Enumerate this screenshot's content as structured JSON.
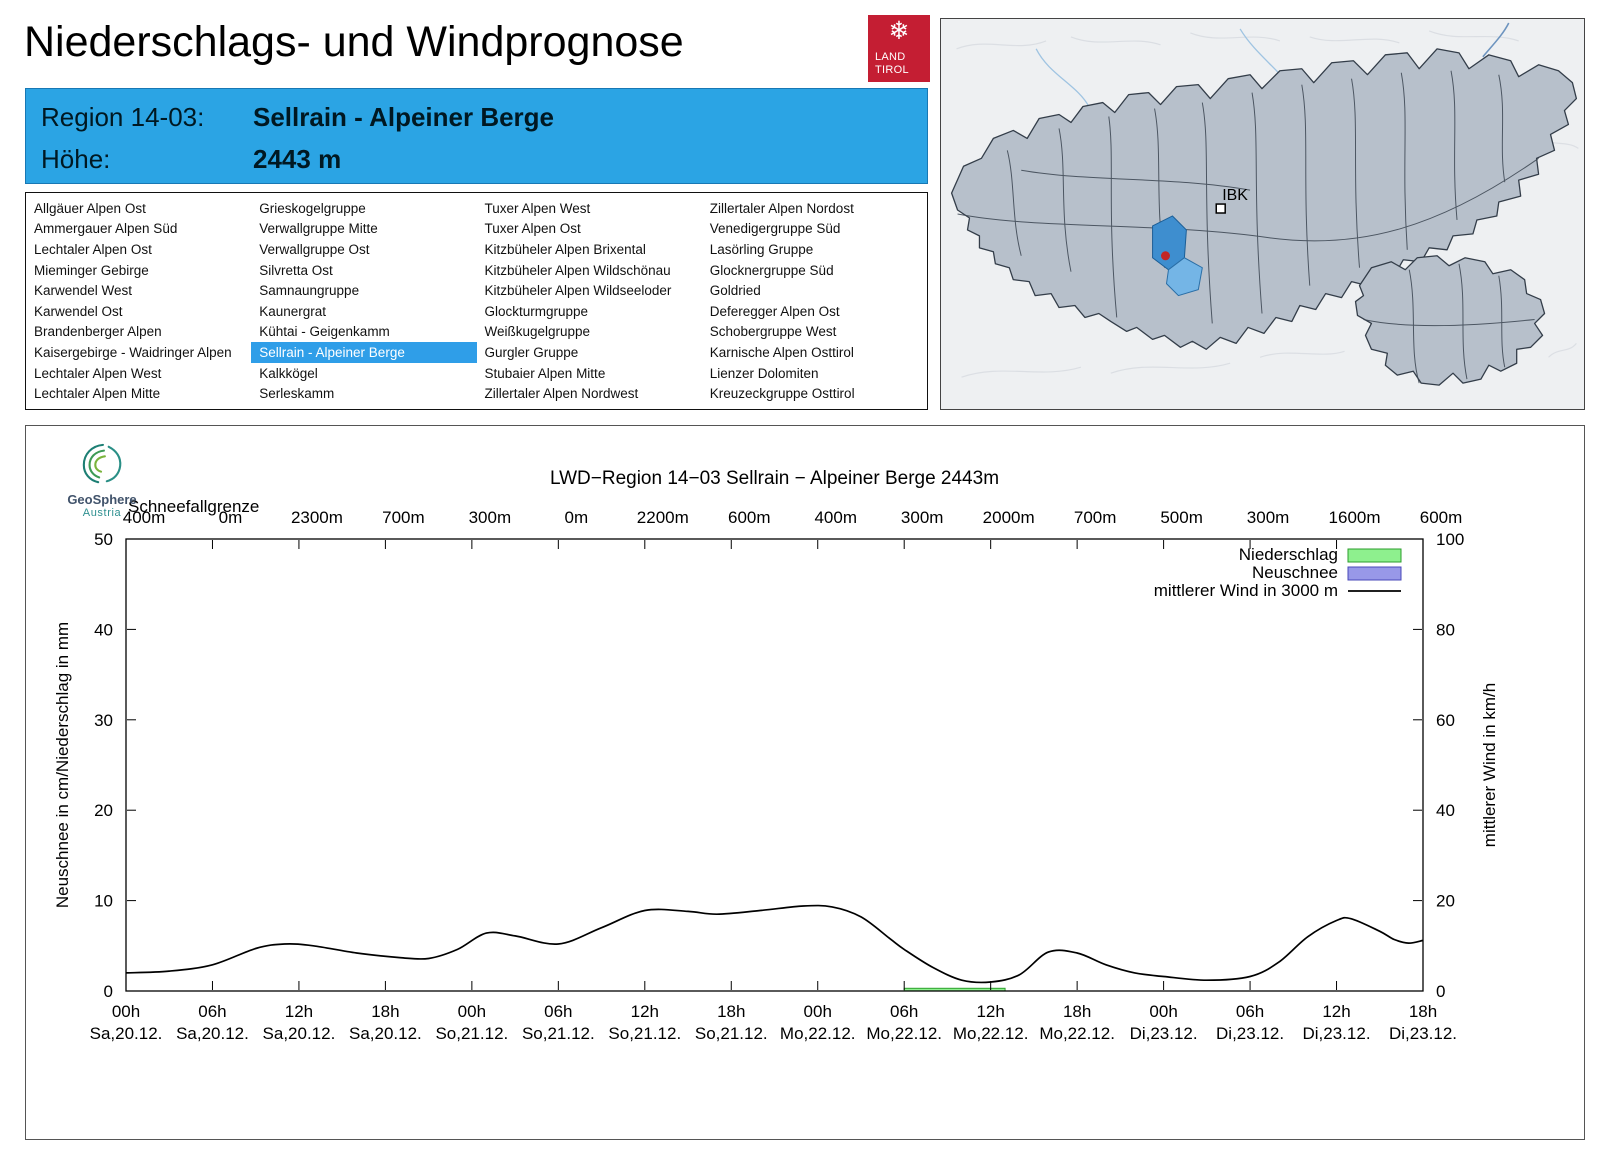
{
  "page": {
    "title": "Niederschlags- und Windprognose"
  },
  "colors": {
    "accent_blue": "#2BA4E4",
    "selection_blue": "#2F9EE8",
    "landtirol_red": "#C41E33",
    "highlight_region_blue": "#3E8ECF",
    "precip_green": "#8EF08E",
    "snow_blue": "#9898E8",
    "wind_black": "#000000",
    "map_region_grey": "#B7C0CB"
  },
  "logo": {
    "emblem": "❄",
    "line1": "LAND",
    "line2": "TIROL"
  },
  "header": {
    "region_label": "Region 14-03:",
    "region_value": "Sellrain - Alpeiner Berge",
    "altitude_label": "Höhe:",
    "altitude_value": "2443 m"
  },
  "map": {
    "city_label": "IBK"
  },
  "region_list": {
    "selected": "Sellrain - Alpeiner Berge",
    "columns": [
      [
        "Allgäuer Alpen Ost",
        "Ammergauer Alpen Süd",
        "Lechtaler Alpen Ost",
        "Mieminger Gebirge",
        "Karwendel West",
        "Karwendel Ost",
        "Brandenberger Alpen",
        "Kaisergebirge - Waidringer Alpen",
        "Lechtaler Alpen West",
        "Lechtaler Alpen Mitte"
      ],
      [
        "Grieskogelgruppe",
        "Verwallgruppe Mitte",
        "Verwallgruppe Ost",
        "Silvretta Ost",
        "Samnaungruppe",
        "Kaunergrat",
        "Kühtai - Geigenkamm",
        "Sellrain - Alpeiner Berge",
        "Kalkkögel",
        "Serleskamm"
      ],
      [
        "Tuxer Alpen West",
        "Tuxer Alpen Ost",
        "Kitzbüheler Alpen Brixental",
        "Kitzbüheler Alpen Wildschönau",
        "Kitzbüheler Alpen Wildseeloder",
        "Glockturmgruppe",
        "Weißkugelgruppe",
        "Gurgler Gruppe",
        "Stubaier Alpen Mitte",
        "Zillertaler Alpen Nordwest"
      ],
      [
        "Zillertaler Alpen Nordost",
        "Venedigergruppe Süd",
        "Lasörling Gruppe",
        "Glocknergruppe Süd",
        "Goldried",
        "Deferegger Alpen Ost",
        "Schobergruppe West",
        "Karnische Alpen Osttirol",
        "Lienzer Dolomiten",
        "Kreuzeckgruppe Osttirol"
      ]
    ]
  },
  "geosphere": {
    "line1": "GeoSphere",
    "line2": "Austria"
  },
  "chart_data": {
    "type": "line",
    "title": "LWD−Region 14−03 Sellrain − Alpeiner Berge 2443m",
    "snowline_label": "Schneefallgrenze",
    "snowline_values": [
      "400m",
      "0m",
      "2300m",
      "700m",
      "300m",
      "0m",
      "2200m",
      "600m",
      "400m",
      "300m",
      "2000m",
      "700m",
      "500m",
      "300m",
      "1600m",
      "600m"
    ],
    "left_axis": {
      "label": "Neuschnee in cm/Niederschlag in mm",
      "min": 0,
      "max": 50,
      "ticks": [
        0,
        10,
        20,
        30,
        40,
        50
      ]
    },
    "right_axis": {
      "label": "mittlerer Wind in km/h",
      "min": 0,
      "max": 100,
      "ticks": [
        0,
        20,
        40,
        60,
        80,
        100
      ]
    },
    "x_axis": {
      "range_hours": [
        0,
        90
      ],
      "tick_step_hours": 6,
      "ticks": [
        {
          "hour": "00h",
          "day": "Sa,20.12."
        },
        {
          "hour": "06h",
          "day": "Sa,20.12."
        },
        {
          "hour": "12h",
          "day": "Sa,20.12."
        },
        {
          "hour": "18h",
          "day": "Sa,20.12."
        },
        {
          "hour": "00h",
          "day": "So,21.12."
        },
        {
          "hour": "06h",
          "day": "So,21.12."
        },
        {
          "hour": "12h",
          "day": "So,21.12."
        },
        {
          "hour": "18h",
          "day": "So,21.12."
        },
        {
          "hour": "00h",
          "day": "Mo,22.12."
        },
        {
          "hour": "06h",
          "day": "Mo,22.12."
        },
        {
          "hour": "12h",
          "day": "Mo,22.12."
        },
        {
          "hour": "18h",
          "day": "Mo,22.12."
        },
        {
          "hour": "00h",
          "day": "Di,23.12."
        },
        {
          "hour": "06h",
          "day": "Di,23.12."
        },
        {
          "hour": "12h",
          "day": "Di,23.12."
        },
        {
          "hour": "18h",
          "day": "Di,23.12."
        }
      ]
    },
    "legend": [
      {
        "label": "Niederschlag",
        "swatch": "box",
        "color": "#8EF08E",
        "border": "#2C9E2C"
      },
      {
        "label": "Neuschnee",
        "swatch": "box",
        "color": "#9898E8",
        "border": "#4848B8"
      },
      {
        "label": "mittlerer Wind in 3000 m",
        "swatch": "line",
        "color": "#000000"
      }
    ],
    "series": [
      {
        "name": "mittlerer Wind in 3000 m",
        "type": "line",
        "axis": "right",
        "unit": "km/h",
        "color": "#000000",
        "points": [
          [
            0,
            4.0
          ],
          [
            3,
            4.4
          ],
          [
            6,
            5.8
          ],
          [
            9,
            9.4
          ],
          [
            11,
            10.4
          ],
          [
            13,
            10.0
          ],
          [
            16,
            8.4
          ],
          [
            19,
            7.4
          ],
          [
            21,
            7.2
          ],
          [
            23,
            9.2
          ],
          [
            25,
            12.8
          ],
          [
            27,
            12.2
          ],
          [
            30,
            10.4
          ],
          [
            33,
            14.0
          ],
          [
            36,
            17.8
          ],
          [
            39,
            17.6
          ],
          [
            41,
            17.0
          ],
          [
            44,
            17.8
          ],
          [
            47,
            18.8
          ],
          [
            49,
            18.6
          ],
          [
            51,
            16.4
          ],
          [
            53,
            11.6
          ],
          [
            54,
            9.2
          ],
          [
            56,
            5.2
          ],
          [
            58,
            2.4
          ],
          [
            60,
            2.0
          ],
          [
            62,
            3.6
          ],
          [
            64,
            8.6
          ],
          [
            66,
            8.4
          ],
          [
            68,
            5.8
          ],
          [
            70,
            4.0
          ],
          [
            72,
            3.2
          ],
          [
            75,
            2.4
          ],
          [
            78,
            3.2
          ],
          [
            80,
            6.4
          ],
          [
            82,
            12.0
          ],
          [
            84,
            15.6
          ],
          [
            85,
            16.0
          ],
          [
            87,
            13.2
          ],
          [
            88,
            11.4
          ],
          [
            89,
            10.6
          ],
          [
            90,
            11.2
          ]
        ]
      }
    ],
    "precipitation_bars_mm": [
      {
        "from_hour": 54,
        "to_hour": 61,
        "value": 0.3
      }
    ]
  }
}
